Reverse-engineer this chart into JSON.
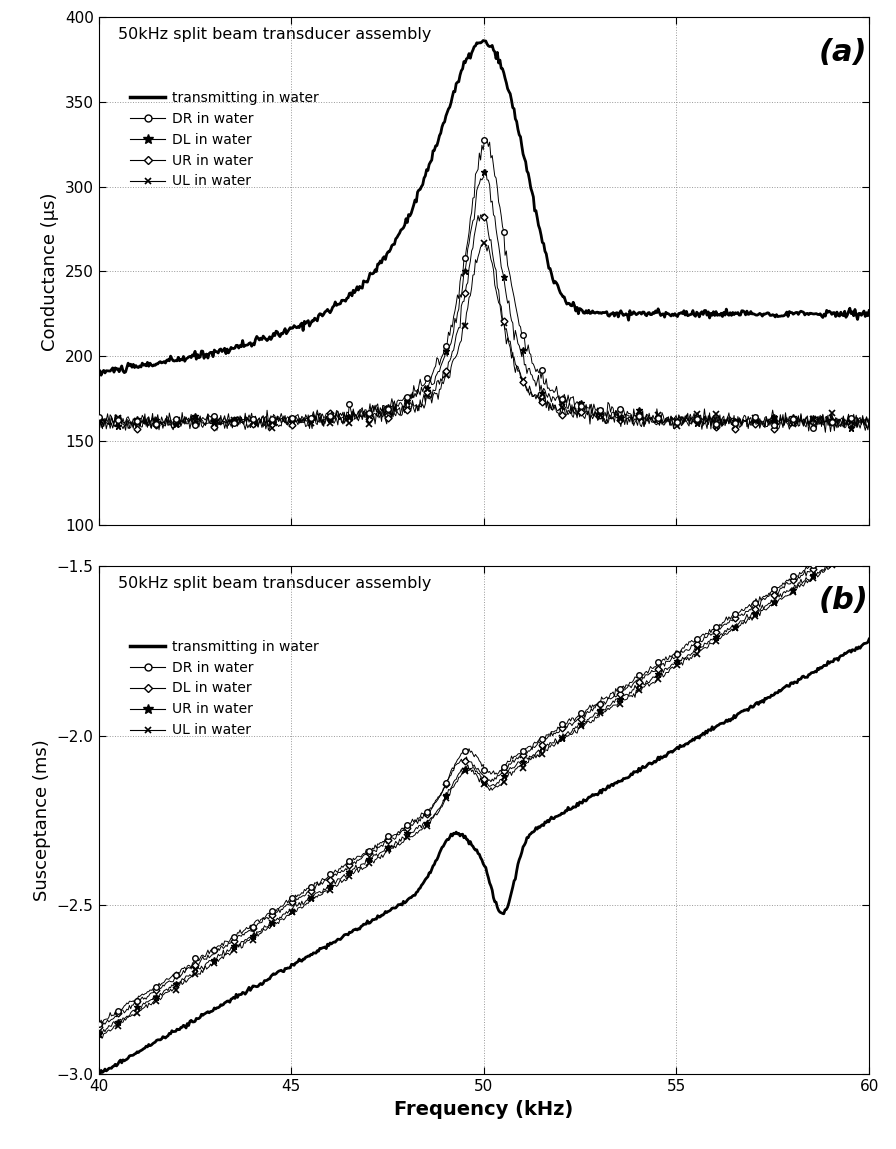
{
  "title_a": "50kHz split beam transducer assembly",
  "title_b": "50kHz split beam transducer assembly",
  "label_a": "(a)",
  "label_b": "(b)",
  "ylabel_a": "Conductance (μs)",
  "ylabel_b": "Susceptance (ms)",
  "xlabel": "Frequency (kHz)",
  "xlim": [
    40,
    60
  ],
  "ylim_a": [
    100,
    400
  ],
  "ylim_b": [
    -3.0,
    -1.5
  ],
  "yticks_a": [
    100,
    150,
    200,
    250,
    300,
    350,
    400
  ],
  "yticks_b": [
    -3.0,
    -2.5,
    -2.0,
    -1.5
  ],
  "xticks": [
    40,
    45,
    50,
    55,
    60
  ],
  "freq_min": 40,
  "freq_max": 60,
  "freq_points": 600,
  "legend_entries_a": [
    "transmitting in water",
    "DR in water",
    "DL in water",
    "UR in water",
    "UL in water"
  ],
  "legend_entries_b": [
    "transmitting in water",
    "DR in water",
    "DL in water",
    "UR in water",
    "UL in water"
  ],
  "line_color": "#000000",
  "background_color": "#ffffff",
  "grid_color": "#999999",
  "marker_step": 15
}
